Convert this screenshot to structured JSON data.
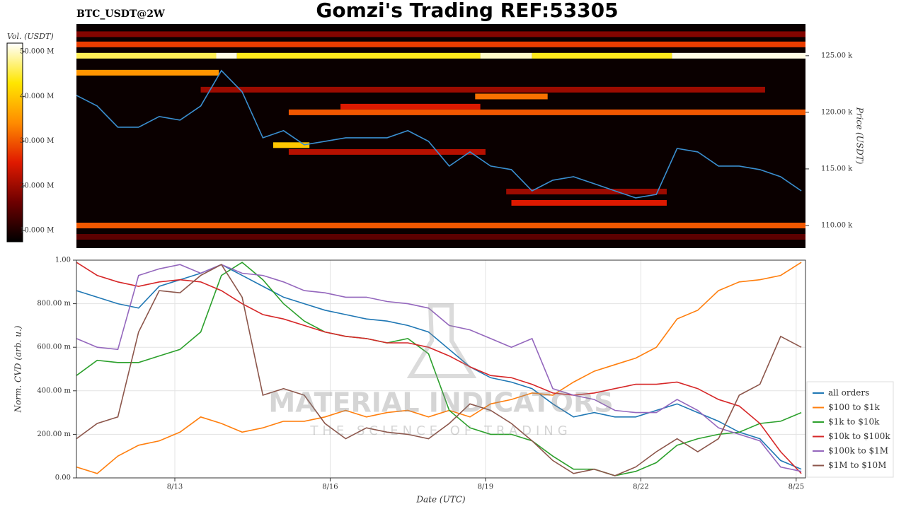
{
  "watermark": {
    "title": "MATERIAL INDICATORS",
    "subtitle": "THE SCIENCE OF TRADING"
  },
  "chart_data": [
    {
      "type": "heatmap",
      "title": "Gomzi's Trading REF:53305",
      "subtitle": "BTC_USDT@2W",
      "ylabel": "Price (USDT)",
      "xlim": [
        11.1,
        25.18
      ],
      "ylim": [
        108000,
        127800
      ],
      "yticks": [
        {
          "value": 110000,
          "label": "110.00 k"
        },
        {
          "value": 115000,
          "label": "115.00 k"
        },
        {
          "value": 120000,
          "label": "120.00 k"
        },
        {
          "value": 125000,
          "label": "125.00 k"
        }
      ],
      "colorbar": {
        "label": "Vol. (USDT)",
        "zlim": [
          7500000,
          51900000
        ],
        "colorscale": [
          "#000000",
          "#6e0000",
          "#e01a00",
          "#ff8c00",
          "#ffe600",
          "#ffffff"
        ],
        "ticks": [
          {
            "value": 10000000,
            "label": "10.000 M"
          },
          {
            "value": 20000000,
            "label": "20.000 M"
          },
          {
            "value": 30000000,
            "label": "30.000 M"
          },
          {
            "value": 40000000,
            "label": "40.000 M"
          },
          {
            "value": 50000000,
            "label": "50.000 M"
          }
        ]
      },
      "bands": [
        {
          "price": 125000,
          "x0": 11.1,
          "x1": 13.8,
          "volume": 46000000
        },
        {
          "price": 125000,
          "x0": 13.8,
          "x1": 14.2,
          "volume": 51000000
        },
        {
          "price": 125000,
          "x0": 14.2,
          "x1": 18.9,
          "volume": 44000000
        },
        {
          "price": 125000,
          "x0": 18.9,
          "x1": 19.9,
          "volume": 50000000
        },
        {
          "price": 125000,
          "x0": 19.9,
          "x1": 22.6,
          "volume": 44000000
        },
        {
          "price": 125000,
          "x0": 22.6,
          "x1": 25.18,
          "volume": 51000000
        },
        {
          "price": 126000,
          "x0": 11.1,
          "x1": 25.18,
          "volume": 28000000
        },
        {
          "price": 126900,
          "x0": 11.1,
          "x1": 25.18,
          "volume": 18000000
        },
        {
          "price": 123500,
          "x0": 11.1,
          "x1": 13.85,
          "volume": 35000000
        },
        {
          "price": 122000,
          "x0": 13.5,
          "x1": 24.4,
          "volume": 20000000
        },
        {
          "price": 121400,
          "x0": 18.8,
          "x1": 20.2,
          "volume": 32000000
        },
        {
          "price": 120500,
          "x0": 16.2,
          "x1": 18.9,
          "volume": 25000000
        },
        {
          "price": 120000,
          "x0": 15.2,
          "x1": 25.18,
          "volume": 30000000
        },
        {
          "price": 117100,
          "x0": 14.9,
          "x1": 15.6,
          "volume": 40000000
        },
        {
          "price": 116500,
          "x0": 15.2,
          "x1": 19.0,
          "volume": 22000000
        },
        {
          "price": 113000,
          "x0": 19.4,
          "x1": 22.5,
          "volume": 20000000
        },
        {
          "price": 112000,
          "x0": 19.5,
          "x1": 22.5,
          "volume": 25000000
        },
        {
          "price": 110000,
          "x0": 11.1,
          "x1": 25.18,
          "volume": 30000000
        },
        {
          "price": 109000,
          "x0": 11.1,
          "x1": 25.18,
          "volume": 15000000
        }
      ],
      "x": [
        11.1,
        11.5,
        11.9,
        12.3,
        12.7,
        13.1,
        13.5,
        13.9,
        14.3,
        14.7,
        15.1,
        15.5,
        15.9,
        16.3,
        16.7,
        17.1,
        17.5,
        17.9,
        18.3,
        18.7,
        19.1,
        19.5,
        19.9,
        20.3,
        20.7,
        21.1,
        21.5,
        21.9,
        22.3,
        22.7,
        23.1,
        23.5,
        23.9,
        24.3,
        24.7,
        25.1
      ],
      "price": {
        "color": "#3a8fd0",
        "values": [
          121500,
          120560,
          118690,
          118690,
          119630,
          119310,
          120560,
          123690,
          121810,
          117750,
          118380,
          117130,
          117440,
          117750,
          117750,
          117750,
          118380,
          117440,
          115250,
          116500,
          115250,
          114940,
          113060,
          114000,
          114310,
          113690,
          113060,
          112440,
          112750,
          116810,
          116500,
          115250,
          115250,
          114940,
          114310,
          113060
        ]
      }
    },
    {
      "type": "line",
      "xlabel": "Date (UTC)",
      "ylabel": "Norm. CVD (arb. u.)",
      "grid": true,
      "legend": "lower right",
      "xlim": [
        11.1,
        25.18
      ],
      "ylim": [
        0,
        1
      ],
      "xticks": [
        {
          "value": 13,
          "label": "8/13"
        },
        {
          "value": 16,
          "label": "8/16"
        },
        {
          "value": 19,
          "label": "8/19"
        },
        {
          "value": 22,
          "label": "8/22"
        },
        {
          "value": 25,
          "label": "8/25"
        }
      ],
      "yticks": [
        {
          "value": 0,
          "label": "0.00"
        },
        {
          "value": 0.2,
          "label": "200.00 m"
        },
        {
          "value": 0.4,
          "label": "400.00 m"
        },
        {
          "value": 0.6,
          "label": "600.00 m"
        },
        {
          "value": 0.8,
          "label": "800.00 m"
        },
        {
          "value": 1,
          "label": "1.00"
        }
      ],
      "x": [
        11.1,
        11.5,
        11.9,
        12.3,
        12.7,
        13.1,
        13.5,
        13.9,
        14.3,
        14.7,
        15.1,
        15.5,
        15.9,
        16.3,
        16.7,
        17.1,
        17.5,
        17.9,
        18.3,
        18.7,
        19.1,
        19.5,
        19.9,
        20.3,
        20.7,
        21.1,
        21.5,
        21.9,
        22.3,
        22.7,
        23.1,
        23.5,
        23.9,
        24.3,
        24.7,
        25.1
      ],
      "series": [
        {
          "name": "all orders",
          "color": "#1f77b4",
          "values": [
            0.86,
            0.83,
            0.8,
            0.78,
            0.88,
            0.91,
            0.94,
            0.98,
            0.93,
            0.88,
            0.83,
            0.8,
            0.77,
            0.75,
            0.73,
            0.72,
            0.7,
            0.67,
            0.59,
            0.51,
            0.46,
            0.44,
            0.41,
            0.34,
            0.28,
            0.3,
            0.28,
            0.28,
            0.31,
            0.34,
            0.3,
            0.26,
            0.21,
            0.18,
            0.08,
            0.04
          ]
        },
        {
          "name": "$100 to $1k",
          "color": "#ff7f0e",
          "values": [
            0.05,
            0.02,
            0.1,
            0.15,
            0.17,
            0.21,
            0.28,
            0.25,
            0.21,
            0.23,
            0.26,
            0.26,
            0.28,
            0.31,
            0.28,
            0.3,
            0.31,
            0.28,
            0.31,
            0.28,
            0.34,
            0.36,
            0.39,
            0.38,
            0.44,
            0.49,
            0.52,
            0.55,
            0.6,
            0.73,
            0.77,
            0.86,
            0.9,
            0.91,
            0.93,
            0.99
          ]
        },
        {
          "name": "$1k to $10k",
          "color": "#2ca02c",
          "values": [
            0.47,
            0.54,
            0.53,
            0.53,
            0.56,
            0.59,
            0.67,
            0.93,
            0.99,
            0.91,
            0.8,
            0.72,
            0.67,
            0.65,
            0.64,
            0.62,
            0.64,
            0.57,
            0.31,
            0.23,
            0.2,
            0.2,
            0.17,
            0.1,
            0.04,
            0.04,
            0.01,
            0.03,
            0.07,
            0.15,
            0.18,
            0.2,
            0.21,
            0.25,
            0.26,
            0.3
          ]
        },
        {
          "name": "$10k to $100k",
          "color": "#d62728",
          "values": [
            0.99,
            0.93,
            0.9,
            0.88,
            0.9,
            0.91,
            0.9,
            0.86,
            0.8,
            0.75,
            0.73,
            0.7,
            0.67,
            0.65,
            0.64,
            0.62,
            0.62,
            0.6,
            0.56,
            0.51,
            0.47,
            0.46,
            0.43,
            0.39,
            0.38,
            0.39,
            0.41,
            0.43,
            0.43,
            0.44,
            0.41,
            0.36,
            0.33,
            0.25,
            0.12,
            0.02
          ]
        },
        {
          "name": "$100k to $1M",
          "color": "#9467bd",
          "values": [
            0.64,
            0.6,
            0.59,
            0.93,
            0.96,
            0.98,
            0.94,
            0.98,
            0.94,
            0.93,
            0.9,
            0.86,
            0.85,
            0.83,
            0.83,
            0.81,
            0.8,
            0.78,
            0.7,
            0.68,
            0.64,
            0.6,
            0.64,
            0.41,
            0.38,
            0.36,
            0.31,
            0.3,
            0.3,
            0.36,
            0.31,
            0.23,
            0.2,
            0.17,
            0.05,
            0.03
          ]
        },
        {
          "name": "$1M to $10M",
          "color": "#8c564b",
          "values": [
            0.18,
            0.25,
            0.28,
            0.67,
            0.86,
            0.85,
            0.93,
            0.98,
            0.83,
            0.38,
            0.41,
            0.38,
            0.25,
            0.18,
            0.23,
            0.21,
            0.2,
            0.18,
            0.25,
            0.34,
            0.31,
            0.25,
            0.17,
            0.08,
            0.02,
            0.04,
            0.01,
            0.05,
            0.12,
            0.18,
            0.12,
            0.18,
            0.38,
            0.43,
            0.65,
            0.6
          ]
        }
      ]
    }
  ]
}
